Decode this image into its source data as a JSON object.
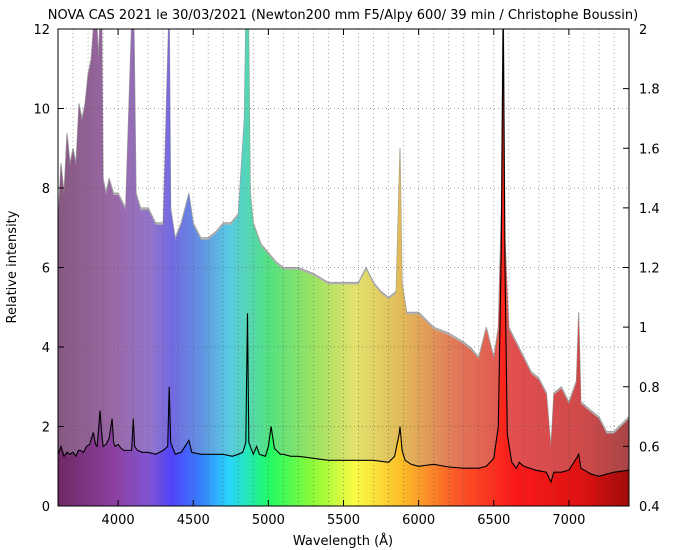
{
  "chart_data": {
    "type": "line",
    "title": "NOVA CAS 2021 le 30/03/2021 (Newton200 mm F5/Alpy 600/ 39 min / Christophe Boussin)",
    "xlabel": "Wavelength (Å)",
    "ylabel": "Relative intensity",
    "xlim": [
      3600,
      7400
    ],
    "ylim": [
      0,
      12
    ],
    "y2lim": [
      0.4,
      2.0
    ],
    "xticks": [
      4000,
      4500,
      5000,
      5500,
      6000,
      6500,
      7000
    ],
    "yticks": [
      0,
      2,
      4,
      6,
      8,
      10,
      12
    ],
    "y2ticks": [
      "0.4",
      "0.6",
      "0.8",
      "1",
      "1.2",
      "1.4",
      "1.6",
      "1.8",
      "2"
    ],
    "grid": true,
    "legend": "none",
    "series": [
      {
        "role": "normalized spectrum (black line, left axis)",
        "color": "#000000",
        "x": [
          3600,
          3620,
          3640,
          3660,
          3680,
          3700,
          3720,
          3735,
          3750,
          3770,
          3790,
          3810,
          3835,
          3850,
          3860,
          3880,
          3889,
          3900,
          3920,
          3940,
          3960,
          3970,
          3980,
          4000,
          4020,
          4040,
          4060,
          4090,
          4101,
          4110,
          4130,
          4160,
          4200,
          4250,
          4300,
          4330,
          4340,
          4350,
          4380,
          4420,
          4471,
          4490,
          4550,
          4600,
          4650,
          4700,
          4760,
          4800,
          4830,
          4850,
          4861,
          4870,
          4900,
          4922,
          4940,
          4980,
          5000,
          5018,
          5040,
          5080,
          5100,
          5150,
          5200,
          5300,
          5400,
          5500,
          5600,
          5700,
          5800,
          5840,
          5870,
          5876,
          5890,
          5910,
          5950,
          6000,
          6100,
          6200,
          6300,
          6400,
          6450,
          6500,
          6530,
          6550,
          6563,
          6575,
          6590,
          6620,
          6650,
          6670,
          6700,
          6780,
          6850,
          6880,
          6900,
          6950,
          7000,
          7050,
          7065,
          7080,
          7150,
          7200,
          7250,
          7300,
          7400
        ],
        "y": [
          1.3,
          1.5,
          1.25,
          1.35,
          1.3,
          1.35,
          1.25,
          1.4,
          1.4,
          1.35,
          1.5,
          1.55,
          1.85,
          1.55,
          1.5,
          2.4,
          1.9,
          1.5,
          1.55,
          1.7,
          2.2,
          1.6,
          1.5,
          1.55,
          1.45,
          1.4,
          1.4,
          1.4,
          2.2,
          1.5,
          1.4,
          1.35,
          1.35,
          1.3,
          1.4,
          1.5,
          3.0,
          1.6,
          1.3,
          1.35,
          1.65,
          1.35,
          1.3,
          1.3,
          1.3,
          1.3,
          1.25,
          1.3,
          1.35,
          1.6,
          4.85,
          1.6,
          1.3,
          1.5,
          1.3,
          1.25,
          1.5,
          2.0,
          1.45,
          1.3,
          1.3,
          1.25,
          1.25,
          1.2,
          1.15,
          1.15,
          1.15,
          1.15,
          1.1,
          1.25,
          1.8,
          2.0,
          1.4,
          1.15,
          1.05,
          1.0,
          1.05,
          0.98,
          0.95,
          0.95,
          1.0,
          1.2,
          2.0,
          6.5,
          12.5,
          6.0,
          1.8,
          1.1,
          0.95,
          1.1,
          1.0,
          0.9,
          0.85,
          0.6,
          0.85,
          0.85,
          0.9,
          1.2,
          1.3,
          0.95,
          0.8,
          0.75,
          0.8,
          0.85,
          0.9
        ]
      },
      {
        "role": "raw spectrum (grey envelope, right axis)",
        "color": "#b4b4b4",
        "x": [
          3600,
          3620,
          3640,
          3660,
          3680,
          3700,
          3720,
          3740,
          3760,
          3780,
          3800,
          3820,
          3850,
          3870,
          3889,
          3900,
          3920,
          3940,
          3970,
          4000,
          4050,
          4101,
          4120,
          4150,
          4200,
          4250,
          4300,
          4340,
          4350,
          4380,
          4420,
          4471,
          4500,
          4550,
          4600,
          4650,
          4700,
          4750,
          4800,
          4840,
          4861,
          4880,
          4900,
          4950,
          5000,
          5050,
          5100,
          5150,
          5200,
          5300,
          5400,
          5500,
          5600,
          5650,
          5700,
          5750,
          5800,
          5850,
          5876,
          5890,
          5920,
          6000,
          6100,
          6200,
          6300,
          6350,
          6400,
          6450,
          6500,
          6530,
          6550,
          6563,
          6575,
          6600,
          6650,
          6700,
          6750,
          6800,
          6850,
          6880,
          6900,
          6950,
          7000,
          7050,
          7065,
          7080,
          7150,
          7200,
          7250,
          7300,
          7400
        ],
        "y": [
          1.35,
          1.55,
          1.45,
          1.65,
          1.55,
          1.6,
          1.55,
          1.75,
          1.7,
          1.75,
          1.85,
          1.9,
          2.1,
          1.9,
          2.2,
          1.5,
          1.45,
          1.5,
          1.45,
          1.45,
          1.4,
          2.2,
          1.45,
          1.4,
          1.4,
          1.35,
          1.35,
          2.1,
          1.4,
          1.3,
          1.35,
          1.45,
          1.35,
          1.3,
          1.3,
          1.32,
          1.35,
          1.35,
          1.38,
          1.7,
          2.4,
          1.45,
          1.35,
          1.28,
          1.25,
          1.22,
          1.2,
          1.2,
          1.2,
          1.18,
          1.15,
          1.15,
          1.15,
          1.2,
          1.15,
          1.12,
          1.1,
          1.12,
          1.6,
          1.15,
          1.05,
          1.05,
          1.0,
          0.98,
          0.95,
          0.93,
          0.9,
          1.0,
          0.9,
          1.0,
          1.4,
          2.2,
          1.3,
          1.0,
          0.95,
          0.9,
          0.85,
          0.83,
          0.78,
          0.6,
          0.78,
          0.8,
          0.75,
          0.82,
          1.05,
          0.75,
          0.72,
          0.7,
          0.65,
          0.65,
          0.7
        ]
      }
    ]
  }
}
